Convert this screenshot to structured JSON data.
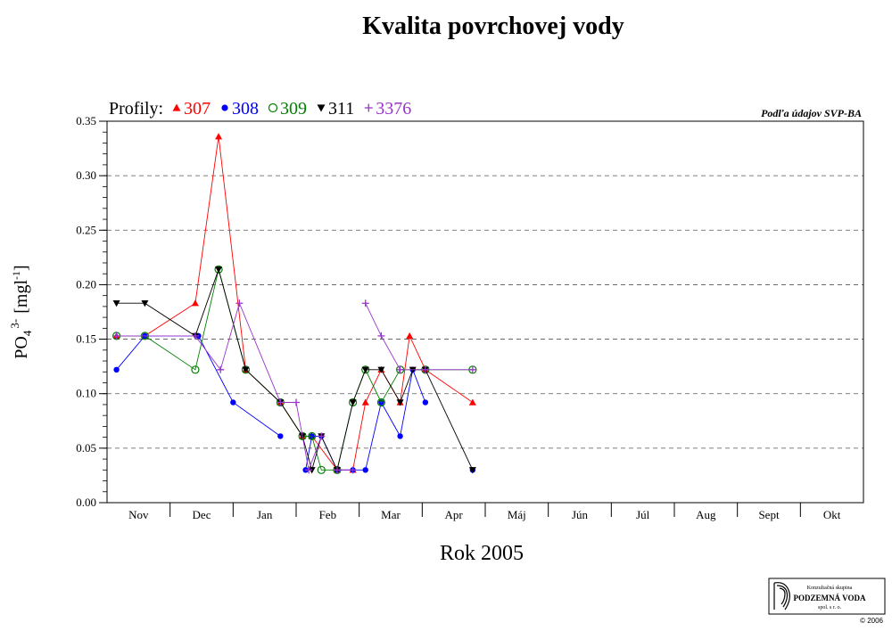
{
  "chart_data": {
    "type": "line",
    "title": "Kvalita povrchovej vody",
    "xlabel": "Rok 2005",
    "ylabel_base": "PO",
    "ylabel_sub": "4",
    "ylabel_sup": "3-",
    "ylabel_unit_open": "[mgl",
    "ylabel_unit_sup": "-1",
    "ylabel_unit_close": "]",
    "ylim": [
      0,
      0.35
    ],
    "yticks": [
      "0.00",
      "0.05",
      "0.10",
      "0.15",
      "0.20",
      "0.25",
      "0.30",
      "0.35"
    ],
    "months": [
      "Nov",
      "Dec",
      "Jan",
      "Feb",
      "Mar",
      "Apr",
      "Máj",
      "Jún",
      "Júl",
      "Aug",
      "Sept",
      "Okt"
    ],
    "xlim": [
      0,
      12
    ],
    "grid": "horizontal-dashed",
    "legend_prefix": "Profily:",
    "legend_placement": "top-left",
    "source_note": "Podľa údajov SVP-BA",
    "series": [
      {
        "name": "307",
        "marker": "triangle-up",
        "color": "#ff0000",
        "points": [
          [
            0.15,
            0.153
          ],
          [
            0.6,
            0.153
          ],
          [
            1.4,
            0.183
          ],
          [
            1.77,
            0.336
          ],
          [
            2.2,
            0.122
          ],
          [
            2.75,
            0.092
          ],
          [
            3.1,
            0.061
          ],
          [
            3.25,
            0.061
          ],
          [
            3.65,
            0.03
          ],
          [
            3.9,
            0.03
          ],
          [
            4.1,
            0.092
          ],
          [
            4.35,
            0.122
          ],
          [
            4.65,
            0.092
          ],
          [
            4.8,
            0.153
          ],
          [
            5.05,
            0.122
          ],
          [
            5.8,
            0.092
          ]
        ]
      },
      {
        "name": "308",
        "marker": "circle",
        "color": "#0000ff",
        "points": [
          [
            0.15,
            0.122
          ],
          [
            0.6,
            0.153
          ],
          [
            1.45,
            0.153
          ],
          [
            2.0,
            0.092
          ],
          [
            2.75,
            0.061
          ],
          null,
          [
            3.15,
            0.03
          ],
          [
            3.25,
            0.061
          ],
          [
            3.4,
            0.061
          ],
          [
            3.65,
            0.03
          ],
          [
            3.9,
            0.03
          ],
          [
            4.1,
            0.03
          ],
          [
            4.35,
            0.092
          ],
          [
            4.65,
            0.061
          ],
          [
            4.85,
            0.122
          ],
          [
            5.05,
            0.092
          ],
          null,
          [
            5.8,
            0.03
          ]
        ]
      },
      {
        "name": "309",
        "marker": "circle-open",
        "color": "#008000",
        "points": [
          [
            0.15,
            0.153
          ],
          [
            0.6,
            0.153
          ],
          [
            1.4,
            0.122
          ],
          [
            1.77,
            0.214
          ],
          [
            2.2,
            0.122
          ],
          [
            2.75,
            0.092
          ],
          [
            3.1,
            0.061
          ],
          [
            3.25,
            0.061
          ],
          [
            3.4,
            0.03
          ],
          [
            3.65,
            0.03
          ],
          [
            3.9,
            0.092
          ],
          [
            4.1,
            0.122
          ],
          [
            4.35,
            0.092
          ],
          [
            4.65,
            0.122
          ],
          [
            5.05,
            0.122
          ],
          [
            5.8,
            0.122
          ]
        ]
      },
      {
        "name": "311",
        "marker": "triangle-down",
        "color": "#000000",
        "points": [
          [
            0.15,
            0.183
          ],
          [
            0.6,
            0.183
          ],
          [
            1.4,
            0.153
          ],
          [
            1.77,
            0.214
          ],
          [
            2.2,
            0.122
          ],
          [
            2.75,
            0.092
          ],
          [
            3.1,
            0.061
          ],
          [
            3.25,
            0.03
          ],
          [
            3.4,
            0.061
          ],
          [
            3.65,
            0.03
          ],
          [
            3.9,
            0.092
          ],
          [
            4.1,
            0.122
          ],
          [
            4.35,
            0.122
          ],
          [
            4.65,
            0.092
          ],
          [
            4.85,
            0.122
          ],
          [
            5.05,
            0.122
          ],
          [
            5.8,
            0.03
          ]
        ]
      },
      {
        "name": "3376",
        "marker": "plus",
        "color": "#9933cc",
        "points": [
          [
            0.15,
            0.153
          ],
          [
            1.4,
            0.153
          ],
          [
            1.8,
            0.122
          ],
          [
            2.1,
            0.183
          ],
          [
            2.75,
            0.092
          ],
          [
            3.0,
            0.092
          ],
          [
            3.2,
            0.03
          ],
          [
            3.4,
            0.061
          ],
          null,
          [
            3.65,
            0.03
          ],
          [
            3.9,
            0.03
          ],
          null,
          [
            4.1,
            0.183
          ],
          [
            4.35,
            0.153
          ],
          [
            4.65,
            0.122
          ],
          [
            5.05,
            0.122
          ],
          [
            5.8,
            0.122
          ]
        ]
      }
    ]
  },
  "logo": {
    "line1": "Konzultačná skupina",
    "line2": "PODZEMNÁ VODA",
    "line3": "spol. s r. o.",
    "copyright": "© 2006"
  }
}
